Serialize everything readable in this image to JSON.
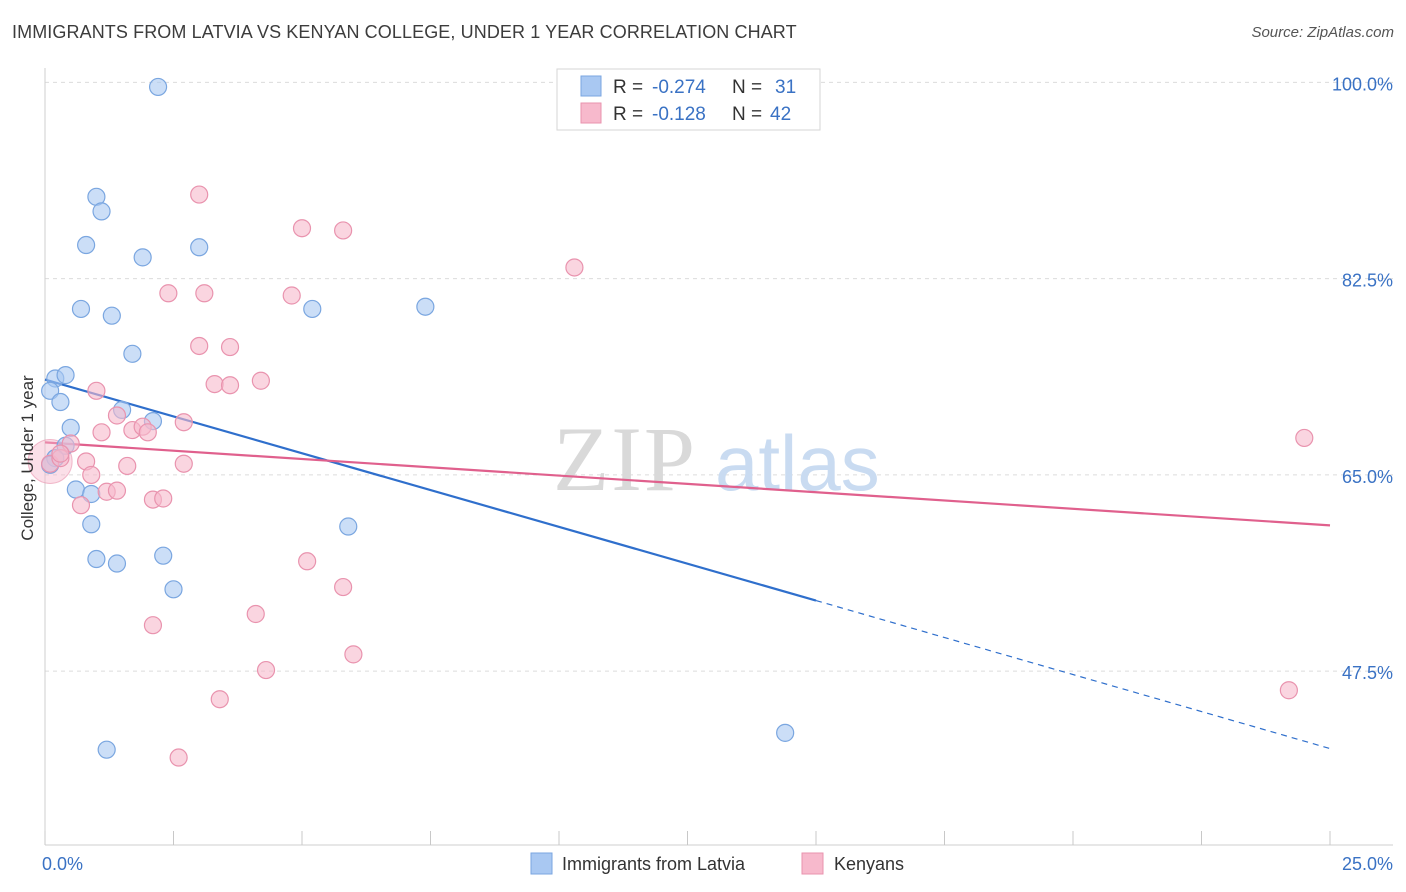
{
  "title": "IMMIGRANTS FROM LATVIA VS KENYAN COLLEGE, UNDER 1 YEAR CORRELATION CHART",
  "source": "Source: ZipAtlas.com",
  "watermark": {
    "zip": "ZIP",
    "atlas": "atlas"
  },
  "colors": {
    "blue_fill": "#a9c8f2",
    "blue_stroke": "#7aa6e0",
    "blue_line": "#2f6fcc",
    "pink_fill": "#f7b9cc",
    "pink_stroke": "#e993ae",
    "pink_line": "#e0608d",
    "axis_text": "#3a72c4",
    "grid": "#dcdcdc"
  },
  "legend": {
    "rows": [
      {
        "r_label": "R =",
        "r_value": "-0.274",
        "n_label": "N =",
        "n_value": "31"
      },
      {
        "r_label": "R =",
        "r_value": "-0.128",
        "n_label": "N =",
        "n_value": "42"
      }
    ]
  },
  "bottom_legend": [
    "Immigrants from Latvia",
    "Kenyans"
  ],
  "chart_data": {
    "type": "scatter",
    "title": "IMMIGRANTS FROM LATVIA VS KENYAN COLLEGE, UNDER 1 YEAR CORRELATION CHART",
    "xlabel": "",
    "ylabel": "College, Under 1 year",
    "xlim": [
      0,
      25
    ],
    "ylim": [
      32,
      102
    ],
    "x_tick_labels": [
      {
        "value": 0,
        "label": "0.0%"
      },
      {
        "value": 25,
        "label": "25.0%"
      }
    ],
    "y_tick_labels": [
      {
        "value": 100,
        "label": "100.0%"
      },
      {
        "value": 82.5,
        "label": "82.5%"
      },
      {
        "value": 65,
        "label": "65.0%"
      },
      {
        "value": 47.5,
        "label": "47.5%"
      }
    ],
    "x_minor_ticks": [
      0,
      2.5,
      5,
      7.5,
      10,
      12.5,
      15,
      17.5,
      20,
      22.5,
      25
    ],
    "grid": true,
    "legend_placement": "top-center",
    "series": [
      {
        "name": "Immigrants from Latvia",
        "color": "#a9c8f2",
        "trend": {
          "x0": 0,
          "y0": 73.5,
          "x1": 15,
          "y1": 53.8,
          "dash_x1": 25,
          "dash_y1": 40.6
        },
        "points": [
          [
            2.2,
            99.6
          ],
          [
            1.0,
            89.8
          ],
          [
            1.1,
            88.5
          ],
          [
            0.8,
            85.5
          ],
          [
            1.9,
            84.4
          ],
          [
            3.0,
            85.3
          ],
          [
            0.7,
            79.8
          ],
          [
            1.3,
            79.2
          ],
          [
            5.2,
            79.8
          ],
          [
            7.4,
            80.0
          ],
          [
            1.7,
            75.8
          ],
          [
            0.2,
            73.6
          ],
          [
            0.4,
            73.9
          ],
          [
            0.1,
            72.5
          ],
          [
            0.3,
            71.5
          ],
          [
            1.5,
            70.8
          ],
          [
            2.1,
            69.8
          ],
          [
            0.5,
            69.2
          ],
          [
            0.4,
            67.6
          ],
          [
            0.2,
            66.5
          ],
          [
            0.1,
            65.9
          ],
          [
            0.6,
            63.7
          ],
          [
            0.9,
            63.3
          ],
          [
            0.9,
            60.6
          ],
          [
            1.0,
            57.5
          ],
          [
            1.4,
            57.1
          ],
          [
            2.3,
            57.8
          ],
          [
            2.5,
            54.8
          ],
          [
            5.9,
            60.4
          ],
          [
            14.4,
            42.0
          ],
          [
            1.2,
            40.5
          ]
        ]
      },
      {
        "name": "Kenyans",
        "color": "#f7b9cc",
        "trend": {
          "x0": 0,
          "y0": 67.9,
          "x1": 25,
          "y1": 60.5
        },
        "points": [
          [
            0.1,
            66.0
          ],
          [
            0.3,
            66.5
          ],
          [
            0.5,
            67.8
          ],
          [
            0.3,
            66.9
          ],
          [
            0.7,
            62.3
          ],
          [
            3.0,
            90.0
          ],
          [
            5.0,
            87.0
          ],
          [
            5.8,
            86.8
          ],
          [
            10.3,
            83.5
          ],
          [
            2.4,
            81.2
          ],
          [
            3.1,
            81.2
          ],
          [
            4.8,
            81.0
          ],
          [
            3.0,
            76.5
          ],
          [
            3.6,
            76.4
          ],
          [
            3.3,
            73.1
          ],
          [
            3.6,
            73.0
          ],
          [
            4.2,
            73.4
          ],
          [
            1.0,
            72.5
          ],
          [
            1.4,
            70.3
          ],
          [
            1.7,
            69.0
          ],
          [
            1.9,
            69.3
          ],
          [
            2.0,
            68.8
          ],
          [
            2.7,
            69.7
          ],
          [
            1.1,
            68.8
          ],
          [
            0.8,
            66.2
          ],
          [
            1.6,
            65.8
          ],
          [
            2.7,
            66.0
          ],
          [
            1.2,
            63.5
          ],
          [
            1.4,
            63.6
          ],
          [
            2.1,
            62.8
          ],
          [
            2.3,
            62.9
          ],
          [
            5.1,
            57.3
          ],
          [
            5.8,
            55.0
          ],
          [
            4.1,
            52.6
          ],
          [
            2.1,
            51.6
          ],
          [
            6.0,
            49.0
          ],
          [
            4.3,
            47.6
          ],
          [
            3.4,
            45.0
          ],
          [
            2.6,
            39.8
          ],
          [
            24.5,
            68.3
          ],
          [
            24.2,
            45.8
          ],
          [
            0.9,
            65.0
          ]
        ]
      }
    ]
  }
}
